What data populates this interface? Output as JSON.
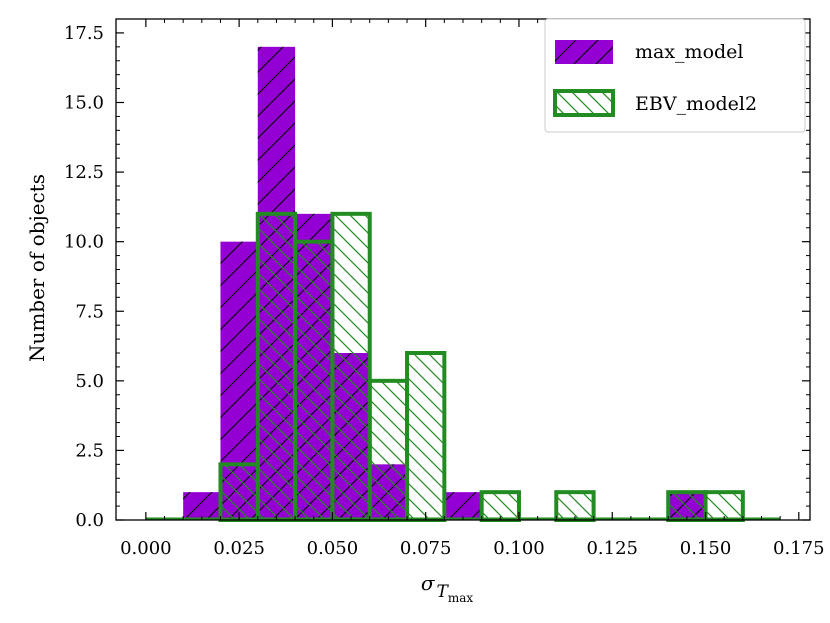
{
  "chart_data": {
    "type": "bar",
    "bin_edges": [
      0.0,
      0.01,
      0.02,
      0.03,
      0.04,
      0.05,
      0.06,
      0.07,
      0.08,
      0.09,
      0.1,
      0.11,
      0.12,
      0.13,
      0.14,
      0.15,
      0.16,
      0.17
    ],
    "series": [
      {
        "name": "max_model",
        "style": "filled",
        "hatch": "/",
        "color": "#9400d3",
        "values": [
          0,
          1,
          10,
          17,
          11,
          6,
          2,
          0,
          1,
          0,
          0,
          0,
          0,
          0,
          1,
          0,
          0
        ]
      },
      {
        "name": "EBV_model2",
        "style": "outline",
        "hatch": "\\",
        "color": "#228b22",
        "values": [
          0,
          0,
          2,
          11,
          10,
          11,
          5,
          6,
          0,
          1,
          0,
          1,
          0,
          0,
          1,
          1,
          0
        ]
      }
    ],
    "xlabel": "σ",
    "xlabel_sub": "T",
    "xlabel_subsub": "max",
    "ylabel": "Number of objects",
    "xlim": [
      -0.008,
      0.178
    ],
    "ylim": [
      0,
      18
    ],
    "xticks": [
      "0.000",
      "0.025",
      "0.050",
      "0.075",
      "0.100",
      "0.125",
      "0.150",
      "0.175"
    ],
    "yticks": [
      "0.0",
      "2.5",
      "5.0",
      "7.5",
      "10.0",
      "12.5",
      "15.0",
      "17.5"
    ],
    "legend_position": "top-right",
    "grid": false
  }
}
